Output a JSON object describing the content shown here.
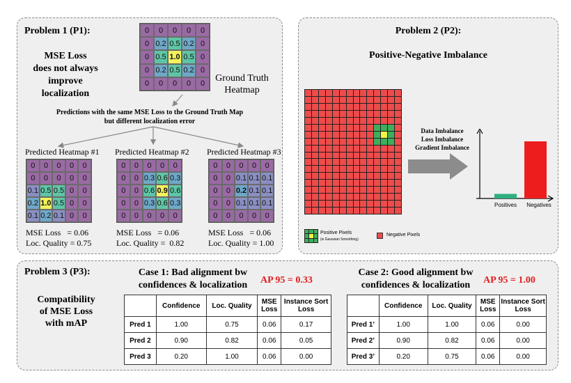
{
  "p1": {
    "title": "Problem 1 (P1):",
    "claim_lines": [
      "MSE Loss",
      "does not always",
      "improve",
      "localization"
    ],
    "gt_label_lines": [
      "Ground Truth",
      "Heatmap"
    ],
    "predictions_caption_lines": [
      "Predictions with the same MSE Loss to the Ground Truth Map",
      "but different localization error"
    ],
    "ground_truth": [
      [
        "0",
        "0",
        "0",
        "0",
        "0"
      ],
      [
        "0",
        "0.2",
        "0.5",
        "0.2",
        "0"
      ],
      [
        "0",
        "0.5",
        "1.0",
        "0.5",
        "0"
      ],
      [
        "0",
        "0.2",
        "0.5",
        "0.2",
        "0"
      ],
      [
        "0",
        "0",
        "0",
        "0",
        "0"
      ]
    ],
    "predicted": [
      {
        "title": "Predicted Heatmap #1",
        "mse": "MSE Loss   = 0.06",
        "loc": "Loc. Quality = 0.75",
        "grid": [
          [
            "0",
            "0",
            "0",
            "0",
            "0"
          ],
          [
            "0",
            "0",
            "0",
            "0",
            "0"
          ],
          [
            "0.1",
            "0.5",
            "0.5",
            "0",
            "0"
          ],
          [
            "0.2",
            "1.0",
            "0.5",
            "0",
            "0"
          ],
          [
            "0.1",
            "0.2",
            "0.1",
            "0",
            "0"
          ]
        ]
      },
      {
        "title": "Predicted Heatmap #2",
        "mse": "MSE Loss   = 0.06",
        "loc": "Loc. Quality =  0.82",
        "grid": [
          [
            "0",
            "0",
            "0",
            "0",
            "0"
          ],
          [
            "0",
            "0",
            "0.3",
            "0.6",
            "0.3"
          ],
          [
            "0",
            "0",
            "0.6",
            "0.9",
            "0.6"
          ],
          [
            "0",
            "0",
            "0.3",
            "0.6",
            "0.3"
          ],
          [
            "0",
            "0",
            "0",
            "0",
            "0"
          ]
        ]
      },
      {
        "title": "Predicted Heatmap #3",
        "mse": "MSE Loss   = 0.06",
        "loc": "Loc. Quality = 1.00",
        "grid": [
          [
            "0",
            "0",
            "0",
            "0",
            "0"
          ],
          [
            "0",
            "0",
            "0.1",
            "0.1",
            "0.1"
          ],
          [
            "0",
            "0",
            "0.2",
            "0.1",
            "0.1"
          ],
          [
            "0",
            "0",
            "0.1",
            "0.1",
            "0.1"
          ],
          [
            "0",
            "0",
            "0",
            "0",
            "0"
          ]
        ]
      }
    ]
  },
  "p2": {
    "title": "Problem 2 (P2):",
    "subtitle": "Positive-Negative Imbalance",
    "imbalance_lines": [
      "Data Imbalance",
      "Loss Imbalance",
      "Gradient Imbalance"
    ],
    "bar_labels": [
      "Positives",
      "Negatives"
    ],
    "bar_values": [
      0.08,
      1.0
    ],
    "bar_colors": [
      "#2fae7f",
      "#ee1d1d"
    ],
    "legend_positive": "Positive Pixels",
    "legend_positive_note": "(w Gaussian Smoothing)",
    "legend_negative": "Negative Pixels",
    "colors": {
      "negative": "#ee4b4b",
      "positive": "#3fae5c",
      "center": "#f5f542"
    }
  },
  "p3": {
    "title": "Problem 3 (P3):",
    "claim_lines": [
      "Compatibility",
      "of MSE Loss",
      "with mAP"
    ],
    "case1": {
      "title_lines": [
        "Case 1: Bad alignment bw",
        "confidences & localization"
      ],
      "ap": "AP 95 = 0.33",
      "headers": [
        "",
        "Confidence",
        "Loc. Quality",
        "MSE Loss",
        "Instance Sort Loss"
      ],
      "rows": [
        [
          "Pred 1",
          "1.00",
          "0.75",
          "0.06",
          "0.17"
        ],
        [
          "Pred 2",
          "0.90",
          "0.82",
          "0.06",
          "0.05"
        ],
        [
          "Pred 3",
          "0.20",
          "1.00",
          "0.06",
          "0.00"
        ]
      ]
    },
    "case2": {
      "title_lines": [
        "Case 2: Good alignment bw",
        "confidences & localization"
      ],
      "ap": "AP 95 = 1.00",
      "headers": [
        "",
        "Confidence",
        "Loc. Quality",
        "MSE Loss",
        "Instance Sort Loss"
      ],
      "rows": [
        [
          "Pred 1’",
          "1.00",
          "1.00",
          "0.06",
          "0.00"
        ],
        [
          "Pred 2’",
          "0.90",
          "0.82",
          "0.06",
          "0.00"
        ],
        [
          "Pred 3’",
          "0.20",
          "0.75",
          "0.06",
          "0.00"
        ]
      ]
    }
  }
}
